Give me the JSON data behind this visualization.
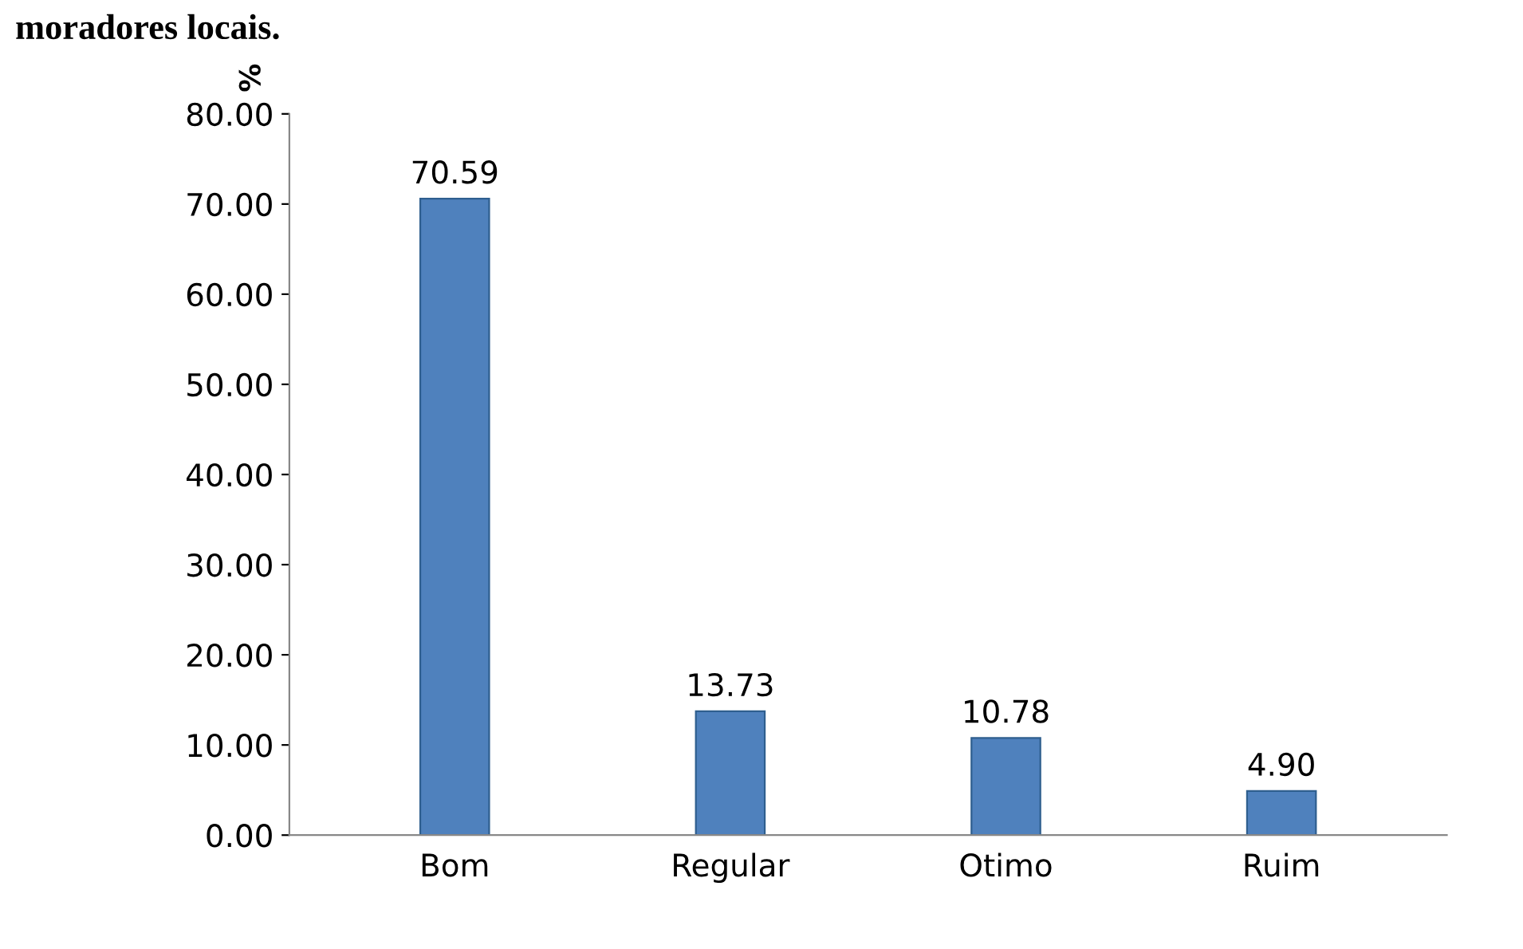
{
  "chart_data": {
    "type": "bar",
    "title": "moradores locais.",
    "ylabel": "%",
    "categories": [
      "Bom",
      "Regular",
      "Otimo",
      "Ruim"
    ],
    "values": [
      70.59,
      13.73,
      10.78,
      4.9
    ],
    "value_labels": [
      "70.59",
      "13.73",
      "10.78",
      "4.90"
    ],
    "color": "#4f81bd",
    "ylim": [
      0,
      80
    ],
    "yticks": [
      {
        "value": 0,
        "label": "0.00"
      },
      {
        "value": 10,
        "label": "10.00"
      },
      {
        "value": 20,
        "label": "20.00"
      },
      {
        "value": 30,
        "label": "30.00"
      },
      {
        "value": 40,
        "label": "40.00"
      },
      {
        "value": 50,
        "label": "50.00"
      },
      {
        "value": 60,
        "label": "60.00"
      },
      {
        "value": 70,
        "label": "70.00"
      },
      {
        "value": 80,
        "label": "80.00"
      }
    ],
    "grid": false,
    "legend": false
  }
}
